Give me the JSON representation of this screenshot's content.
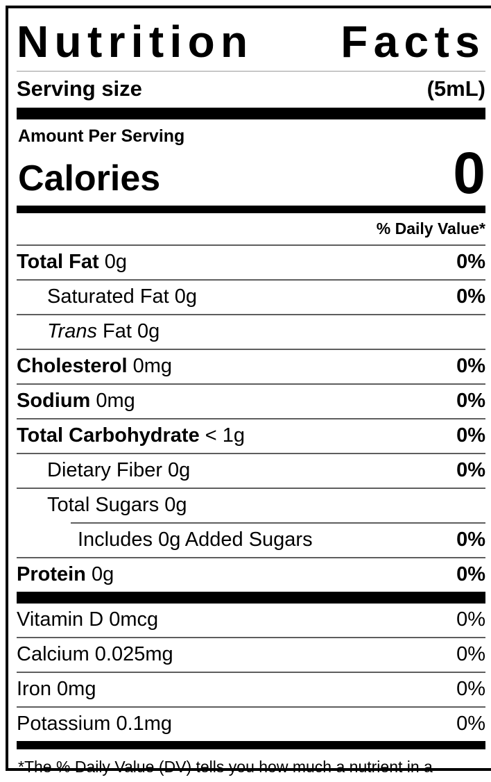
{
  "label": {
    "title": "Nutrition Facts",
    "title_words": [
      "Nutrition",
      "Facts"
    ],
    "serving": {
      "label": "Serving size",
      "value": "(5mL)"
    },
    "amount_per_serving": "Amount Per Serving",
    "calories": {
      "label": "Calories",
      "value": "0"
    },
    "daily_value_header": "% Daily Value*",
    "nutrients": [
      {
        "name": "Total Fat",
        "amount": "0g",
        "percent": "0%",
        "indent": 0,
        "bold": true
      },
      {
        "name": "Saturated Fat",
        "amount": "0g",
        "percent": "0%",
        "indent": 1,
        "bold": false
      },
      {
        "name": "Trans",
        "amount": "Fat 0g",
        "percent": "",
        "indent": 1,
        "bold": false,
        "italic": true
      },
      {
        "name": "Cholesterol",
        "amount": "0mg",
        "percent": "0%",
        "indent": 0,
        "bold": true
      },
      {
        "name": "Sodium",
        "amount": "0mg",
        "percent": "0%",
        "indent": 0,
        "bold": true
      },
      {
        "name": "Total Carbohydrate",
        "amount": "< 1g",
        "percent": "0%",
        "indent": 0,
        "bold": true
      },
      {
        "name": "Dietary Fiber",
        "amount": "0g",
        "percent": "0%",
        "indent": 1,
        "bold": false
      },
      {
        "name": "Total Sugars",
        "amount": "0g",
        "percent": "",
        "indent": 1,
        "bold": false
      },
      {
        "name": "Includes 0g Added Sugars",
        "amount": "",
        "percent": "0%",
        "indent": 2,
        "bold": false,
        "partial_rule": true
      },
      {
        "name": "Protein",
        "amount": "0g",
        "percent": "0%",
        "indent": 0,
        "bold": true
      }
    ],
    "vitamins": [
      {
        "name": "Vitamin D",
        "amount": "0mcg",
        "percent": "0%"
      },
      {
        "name": "Calcium",
        "amount": "0.025mg",
        "percent": "0%"
      },
      {
        "name": "Iron",
        "amount": "0mg",
        "percent": "0%"
      },
      {
        "name": "Potassium",
        "amount": "0.1mg",
        "percent": "0%"
      }
    ],
    "footnote": "*The % Daily Value (DV) tells you how much a nutrient in a serving of food contributes to a daily diet. 2,000 calories a day is used for general nutrition advice.",
    "colors": {
      "text": "#000000",
      "bar": "#000000",
      "divider": "#5e5e5e",
      "light_divider": "#9a9a9a"
    }
  }
}
